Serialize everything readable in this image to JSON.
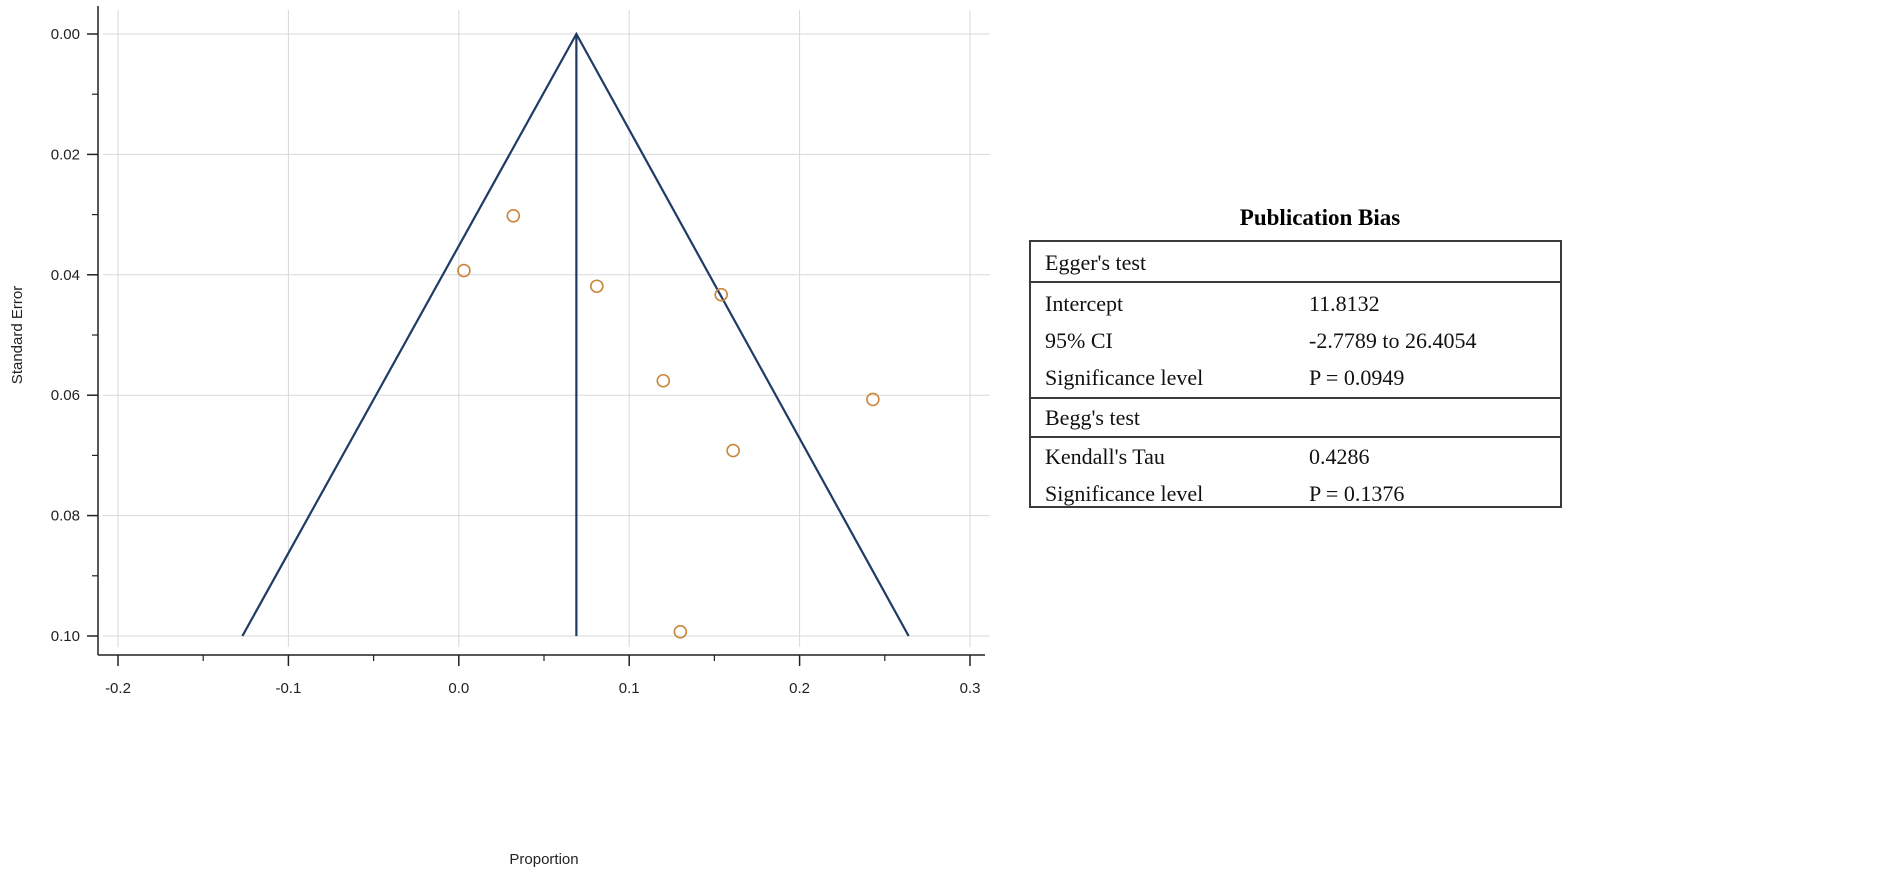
{
  "chart_data": {
    "type": "scatter",
    "subtype": "funnel",
    "xlabel": "Proportion",
    "ylabel": "Standard Error",
    "xlim": [
      -0.2,
      0.3
    ],
    "ylim": [
      0.0,
      0.1
    ],
    "y_inverted": true,
    "xticks": [
      -0.2,
      -0.1,
      0.0,
      0.1,
      0.2,
      0.3
    ],
    "xtick_labels": [
      "-0.2",
      "-0.1",
      "0.0",
      "0.1",
      "0.2",
      "0.3"
    ],
    "yticks": [
      0.0,
      0.02,
      0.04,
      0.06,
      0.08,
      0.1
    ],
    "ytick_labels": [
      "0.00",
      "0.02",
      "0.04",
      "0.06",
      "0.08",
      "0.10"
    ],
    "grid": true,
    "pooled_estimate": 0.069,
    "funnel": {
      "apex": [
        0.069,
        0.0
      ],
      "left_base": [
        -0.127,
        0.1
      ],
      "right_base": [
        0.264,
        0.1
      ]
    },
    "points": [
      {
        "x": 0.032,
        "y": 0.0302
      },
      {
        "x": 0.003,
        "y": 0.0393
      },
      {
        "x": 0.081,
        "y": 0.0419
      },
      {
        "x": 0.154,
        "y": 0.0433
      },
      {
        "x": 0.12,
        "y": 0.0576
      },
      {
        "x": 0.243,
        "y": 0.0607
      },
      {
        "x": 0.161,
        "y": 0.0692
      },
      {
        "x": 0.13,
        "y": 0.0993
      }
    ],
    "colors": {
      "funnel": "#1f3a64",
      "points": "#c8873a",
      "grid": "#d9d9d9",
      "axis": "#222222"
    }
  },
  "publication_bias": {
    "title": "Publication  Bias",
    "egger": {
      "heading": "Egger's  test",
      "rows": [
        {
          "label": "Intercept",
          "value": "11.8132"
        },
        {
          "label": "95% CI",
          "value": "-2.7789 to 26.4054"
        },
        {
          "label": "Significance  level",
          "value": "P = 0.0949"
        }
      ]
    },
    "begg": {
      "heading": "Begg's  test",
      "rows": [
        {
          "label": "Kendall's  Tau",
          "value": "0.4286"
        },
        {
          "label": "Significance  level",
          "value": "P = 0.1376"
        }
      ]
    }
  }
}
